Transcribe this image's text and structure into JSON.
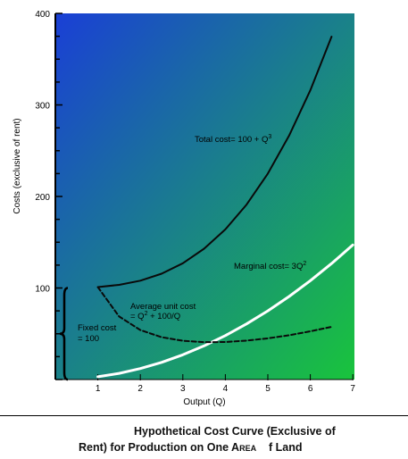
{
  "chart_data": {
    "type": "line",
    "xlabel": "Output (Q)",
    "ylabel": "Costs (exclusive of rent)",
    "xlim": [
      0,
      7
    ],
    "ylim": [
      0,
      400
    ],
    "x_ticks": [
      "1",
      "2",
      "3",
      "4",
      "5",
      "6",
      "7"
    ],
    "y_ticks": [
      "100",
      "200",
      "300",
      "400"
    ],
    "background": {
      "gradient_from": "#1a3fd6",
      "gradient_to": "#19c43c"
    },
    "series": [
      {
        "name": "Total cost= 100 + Q",
        "name_superscript": "3",
        "style": "solid",
        "color": "#0a0a0a",
        "x": [
          1,
          1.5,
          2,
          2.5,
          3,
          3.5,
          4,
          4.5,
          5,
          5.5,
          6,
          6.5
        ],
        "y": [
          101,
          103.4,
          108,
          115.6,
          127,
          142.9,
          164,
          191.1,
          225,
          266.4,
          316,
          374.6
        ]
      },
      {
        "name": "Marginal cost= 3Q",
        "name_superscript": "2",
        "style": "solid",
        "color": "#ffffff",
        "x": [
          1,
          1.5,
          2,
          2.5,
          3,
          3.5,
          4,
          4.5,
          5,
          5.5,
          6,
          6.5,
          7
        ],
        "y": [
          3,
          6.75,
          12,
          18.75,
          27,
          36.75,
          48,
          60.75,
          75,
          90.75,
          108,
          126.75,
          147
        ]
      },
      {
        "name": "Average unit cost",
        "name_line2": "= Q",
        "name_superscript": "2",
        "name_suffix": " + 100/Q",
        "style": "dashed",
        "color": "#0a0a0a",
        "x": [
          1,
          1.5,
          2,
          2.5,
          3,
          3.5,
          4,
          4.5,
          5,
          5.5,
          6,
          6.5
        ],
        "y": [
          101,
          68.9,
          54,
          46.25,
          42.3,
          40.8,
          41,
          42.5,
          45,
          48.4,
          52.7,
          57.6
        ]
      }
    ],
    "annotation": {
      "line1": "Fixed cost",
      "line2": "= 100"
    }
  },
  "caption": {
    "line1": "Hypothetical Cost Curve (Exclusive of",
    "line2_a": "Rent) for Production on One A",
    "line2_b": "REA",
    "line2_c": "    f Land"
  }
}
